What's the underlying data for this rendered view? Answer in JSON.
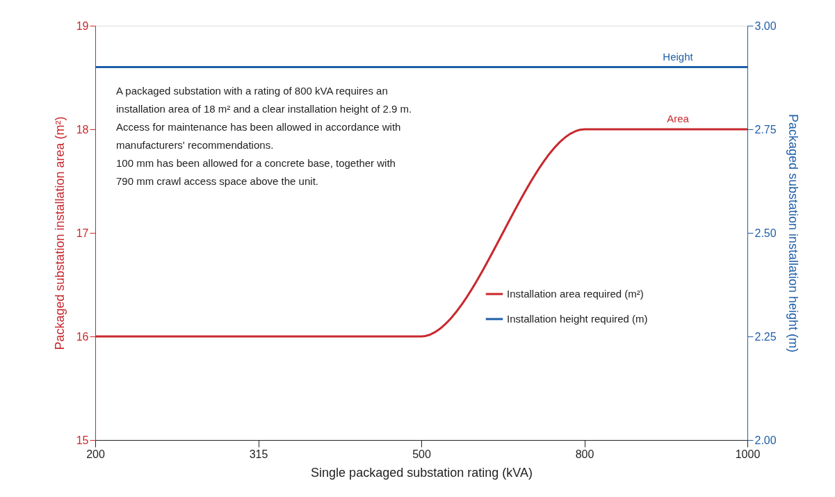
{
  "chart_data": {
    "type": "line",
    "categories": [
      "200",
      "315",
      "500",
      "800",
      "1000"
    ],
    "xlabel": "Single packaged substation rating (kVA)",
    "ylabel": "Packaged substation installation area (m²)",
    "y2label": "Packaged substation installation height (m)",
    "series": [
      {
        "name": "Installation area required (m²)",
        "color": "#c8282d",
        "values": [
          16,
          16,
          16,
          18,
          18
        ]
      },
      {
        "name": "Installation height required (m)",
        "color": "#1f5fa8",
        "values": [
          2.9,
          2.9,
          2.9,
          2.9,
          2.9
        ],
        "axis": "y2"
      }
    ],
    "ylim": [
      15,
      19
    ],
    "yticks": [
      15,
      16,
      17,
      18,
      19
    ],
    "y2lim": [
      2.0,
      3.0
    ],
    "y2ticks": [
      {
        "value": 2.0,
        "label": "2.00"
      },
      {
        "value": 2.25,
        "label": "2.25"
      },
      {
        "value": 2.5,
        "label": "2.50"
      },
      {
        "value": 2.75,
        "label": "2.75"
      },
      {
        "value": 3.0,
        "label": "3.00"
      }
    ],
    "annotations": [
      "A packaged substation with a rating of 800 kVA requires an",
      "installation area of 18 m² and a clear installation height of 2.9 m.",
      "Access for maintenance has been allowed in accordance with",
      "manufacturers' recommendations.",
      "100 mm has been allowed for a concrete base, together with",
      "790 mm crawl access space above the unit.",
      "Area",
      "Height"
    ],
    "legend": "right",
    "grid": false,
    "marker": "none",
    "line_style": "solid"
  }
}
